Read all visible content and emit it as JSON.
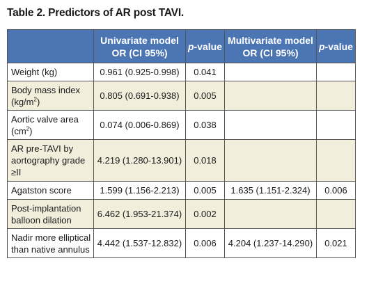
{
  "title": "Table 2. Predictors of AR post TAVI.",
  "colors": {
    "header_bg": "#4b75b3",
    "header_text": "#ffffff",
    "row_alt_bg": "#f1eedc",
    "border": "#555555"
  },
  "headers": {
    "predictor": "",
    "uni_line1": "Univariate model",
    "uni_line2": "OR (CI 95%)",
    "uni_p_italic": "p",
    "uni_p_rest": "-value",
    "multi_line1": "Multivariate model",
    "multi_line2": "OR (CI 95%)",
    "multi_p_italic": "p",
    "multi_p_rest": "-value"
  },
  "rows": [
    {
      "label": "Weight (kg)",
      "label_line2": "",
      "label_line3": "",
      "uni_or": "0.961 (0.925-0.998)",
      "uni_p": "0.041",
      "multi_or": "",
      "multi_p": ""
    },
    {
      "label": "Body mass index",
      "label_line2": "(kg/m",
      "sup": "2",
      "label_tail": ")",
      "label_line3": "",
      "uni_or": "0.805 (0.691-0.938)",
      "uni_p": "0.005",
      "multi_or": "",
      "multi_p": ""
    },
    {
      "label": "Aortic valve area",
      "label_line2": "(cm",
      "sup": "2",
      "label_tail": ")",
      "label_line3": "",
      "uni_or": "0.074 (0.006-0.869)",
      "uni_p": "0.038",
      "multi_or": "",
      "multi_p": ""
    },
    {
      "label": "AR pre-TAVI by",
      "label_line2": "aortography grade",
      "label_line3": "≥II",
      "uni_or": "4.219 (1.280-13.901)",
      "uni_p": "0.018",
      "multi_or": "",
      "multi_p": ""
    },
    {
      "label": "Agatston score",
      "label_line2": "",
      "label_line3": "",
      "uni_or": "1.599 (1.156-2.213)",
      "uni_p": "0.005",
      "multi_or": "1.635 (1.151-2.324)",
      "multi_p": "0.006"
    },
    {
      "label": "Post-implantation",
      "label_line2": "balloon dilation",
      "label_line3": "",
      "uni_or": "6.462 (1.953-21.374)",
      "uni_p": "0.002",
      "multi_or": "",
      "multi_p": ""
    },
    {
      "label": "Nadir more elliptical",
      "label_line2": "than native annulus",
      "label_line3": "",
      "uni_or": "4.442 (1.537-12.832)",
      "uni_p": "0.006",
      "multi_or": "4.204 (1.237-14.290)",
      "multi_p": "0.021"
    }
  ]
}
